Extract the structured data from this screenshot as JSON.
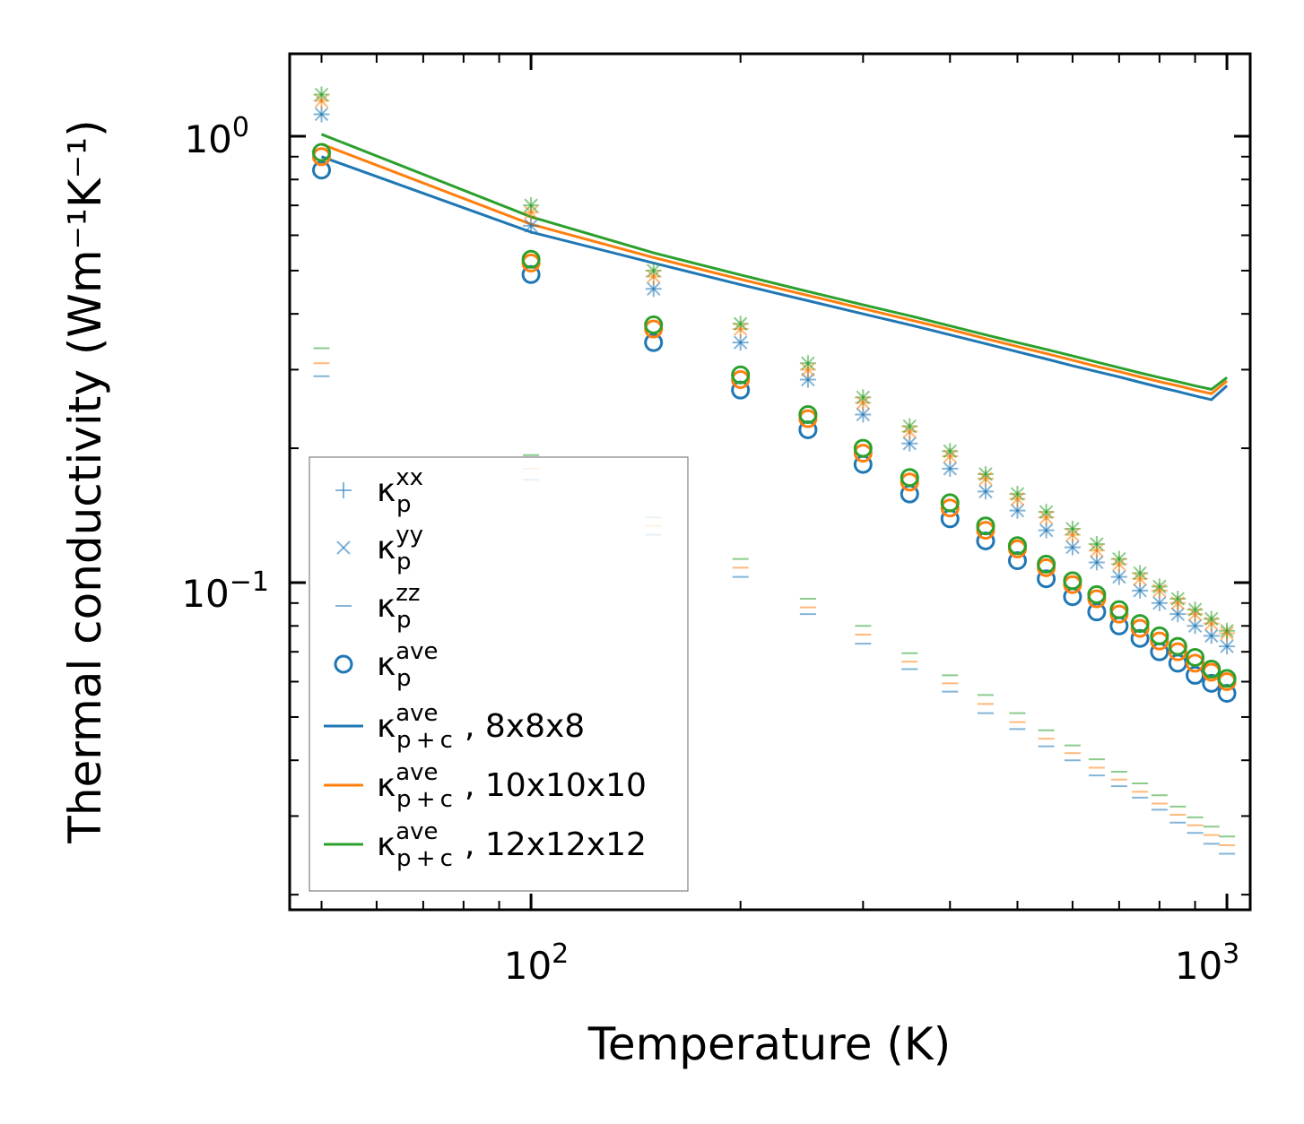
{
  "chart_data": {
    "type": "scatter",
    "xscale": "log",
    "yscale": "log",
    "xlabel": "Temperature (K)",
    "ylabel": "Thermal conductivity (Wm⁻¹K⁻¹)",
    "xlim": [
      45,
      1080
    ],
    "ylim": [
      0.0185,
      1.53
    ],
    "x_ticks": [
      {
        "base": "10",
        "exp": "2",
        "value": 100
      },
      {
        "base": "10",
        "exp": "3",
        "value": 1000
      }
    ],
    "y_ticks": [
      {
        "base": "10",
        "exp": "0",
        "value": 1
      },
      {
        "base": "10",
        "exp": "−1",
        "value": 0.1
      }
    ],
    "colors": {
      "blue": "#1f77b4",
      "orange": "#ff7f0e",
      "green": "#2ca02c"
    },
    "temperatures": [
      50,
      100,
      150,
      200,
      250,
      300,
      350,
      400,
      450,
      500,
      550,
      600,
      650,
      700,
      750,
      800,
      850,
      900,
      950,
      1000
    ],
    "scatter_series": [
      {
        "name": "xx_blue",
        "marker": "plus",
        "color": "blue",
        "y": [
          1.12,
          0.63,
          0.455,
          0.345,
          0.285,
          0.238,
          0.205,
          0.18,
          0.16,
          0.145,
          0.131,
          0.12,
          0.111,
          0.103,
          0.096,
          0.09,
          0.085,
          0.08,
          0.076,
          0.072
        ]
      },
      {
        "name": "xx_orange",
        "marker": "plus",
        "color": "orange",
        "y": [
          1.2,
          0.675,
          0.485,
          0.37,
          0.3,
          0.253,
          0.218,
          0.192,
          0.171,
          0.154,
          0.14,
          0.128,
          0.118,
          0.11,
          0.102,
          0.096,
          0.09,
          0.085,
          0.081,
          0.077
        ]
      },
      {
        "name": "xx_green",
        "marker": "plus",
        "color": "green",
        "y": [
          1.24,
          0.7,
          0.5,
          0.38,
          0.31,
          0.26,
          0.224,
          0.197,
          0.175,
          0.158,
          0.144,
          0.132,
          0.122,
          0.113,
          0.105,
          0.098,
          0.092,
          0.087,
          0.083,
          0.078
        ]
      },
      {
        "name": "yy_blue",
        "marker": "cross",
        "color": "blue",
        "y": [
          1.12,
          0.63,
          0.455,
          0.345,
          0.285,
          0.238,
          0.205,
          0.18,
          0.16,
          0.145,
          0.131,
          0.12,
          0.111,
          0.103,
          0.096,
          0.09,
          0.085,
          0.08,
          0.076,
          0.072
        ]
      },
      {
        "name": "yy_orange",
        "marker": "cross",
        "color": "orange",
        "y": [
          1.2,
          0.675,
          0.485,
          0.37,
          0.3,
          0.253,
          0.218,
          0.192,
          0.171,
          0.154,
          0.14,
          0.128,
          0.118,
          0.11,
          0.102,
          0.096,
          0.09,
          0.085,
          0.081,
          0.077
        ]
      },
      {
        "name": "yy_green",
        "marker": "cross",
        "color": "green",
        "y": [
          1.24,
          0.7,
          0.5,
          0.38,
          0.31,
          0.26,
          0.224,
          0.197,
          0.175,
          0.158,
          0.144,
          0.132,
          0.122,
          0.113,
          0.105,
          0.098,
          0.092,
          0.087,
          0.083,
          0.078
        ]
      },
      {
        "name": "zz_blue",
        "marker": "hline",
        "color": "blue",
        "y": [
          0.29,
          0.17,
          0.128,
          0.103,
          0.085,
          0.073,
          0.064,
          0.057,
          0.051,
          0.047,
          0.043,
          0.04,
          0.037,
          0.035,
          0.033,
          0.031,
          0.029,
          0.0275,
          0.026,
          0.0247
        ]
      },
      {
        "name": "zz_orange",
        "marker": "hline",
        "color": "orange",
        "y": [
          0.31,
          0.18,
          0.134,
          0.108,
          0.088,
          0.0765,
          0.0665,
          0.0595,
          0.0535,
          0.0487,
          0.0447,
          0.0415,
          0.0385,
          0.0362,
          0.034,
          0.032,
          0.0302,
          0.0286,
          0.0272,
          0.0258
        ]
      },
      {
        "name": "zz_green",
        "marker": "hline",
        "color": "green",
        "y": [
          0.335,
          0.193,
          0.14,
          0.113,
          0.092,
          0.08,
          0.0695,
          0.062,
          0.056,
          0.051,
          0.0467,
          0.0432,
          0.0402,
          0.0377,
          0.0355,
          0.0334,
          0.0315,
          0.0298,
          0.0284,
          0.027
        ]
      },
      {
        "name": "ave_blue",
        "marker": "circle",
        "color": "blue",
        "y": [
          0.84,
          0.49,
          0.345,
          0.27,
          0.22,
          0.184,
          0.158,
          0.139,
          0.124,
          0.112,
          0.102,
          0.093,
          0.086,
          0.08,
          0.075,
          0.07,
          0.066,
          0.062,
          0.0595,
          0.0565
        ]
      },
      {
        "name": "ave_orange",
        "marker": "circle",
        "color": "orange",
        "y": [
          0.9,
          0.52,
          0.37,
          0.285,
          0.233,
          0.195,
          0.168,
          0.147,
          0.131,
          0.119,
          0.108,
          0.099,
          0.092,
          0.085,
          0.079,
          0.074,
          0.07,
          0.066,
          0.063,
          0.06
        ]
      },
      {
        "name": "ave_green",
        "marker": "circle",
        "color": "green",
        "y": [
          0.92,
          0.53,
          0.378,
          0.292,
          0.238,
          0.2,
          0.172,
          0.151,
          0.134,
          0.121,
          0.11,
          0.101,
          0.094,
          0.087,
          0.081,
          0.076,
          0.072,
          0.068,
          0.064,
          0.061
        ]
      }
    ],
    "line_series": [
      {
        "name": "p+c_8x8x8",
        "color": "blue",
        "y": [
          0.9,
          0.61,
          0.52,
          0.465,
          0.428,
          0.4,
          0.378,
          0.359,
          0.343,
          0.329,
          0.317,
          0.306,
          0.297,
          0.289,
          0.281,
          0.274,
          0.268,
          0.262,
          0.257,
          0.276
        ]
      },
      {
        "name": "p+c_10x10x10",
        "color": "orange",
        "y": [
          0.96,
          0.635,
          0.535,
          0.478,
          0.44,
          0.411,
          0.388,
          0.369,
          0.352,
          0.338,
          0.326,
          0.315,
          0.305,
          0.297,
          0.289,
          0.282,
          0.276,
          0.27,
          0.265,
          0.283
        ]
      },
      {
        "name": "p+c_12x12x12",
        "color": "green",
        "y": [
          1.01,
          0.66,
          0.548,
          0.489,
          0.449,
          0.419,
          0.396,
          0.376,
          0.359,
          0.345,
          0.333,
          0.322,
          0.312,
          0.303,
          0.295,
          0.288,
          0.282,
          0.276,
          0.271,
          0.288
        ]
      }
    ],
    "legend": {
      "position": "lower-left",
      "entries": [
        {
          "sym": "κ",
          "sub": "p",
          "sup": "xx",
          "tail": "",
          "marker": "plus",
          "color": "blue"
        },
        {
          "sym": "κ",
          "sub": "p",
          "sup": "yy",
          "tail": "",
          "marker": "cross",
          "color": "blue"
        },
        {
          "sym": "κ",
          "sub": "p",
          "sup": "zz",
          "tail": "",
          "marker": "hline",
          "color": "blue"
        },
        {
          "sym": "κ",
          "sub": "p",
          "sup": "ave",
          "tail": "",
          "marker": "circle",
          "color": "blue"
        },
        {
          "sym": "κ",
          "sub": "p + c",
          "sup": "ave",
          "tail": ", 8x8x8",
          "marker": "line",
          "color": "blue"
        },
        {
          "sym": "κ",
          "sub": "p + c",
          "sup": "ave",
          "tail": ", 10x10x10",
          "marker": "line",
          "color": "orange"
        },
        {
          "sym": "κ",
          "sub": "p + c",
          "sup": "ave",
          "tail": ", 12x12x12",
          "marker": "line",
          "color": "green"
        }
      ]
    }
  }
}
